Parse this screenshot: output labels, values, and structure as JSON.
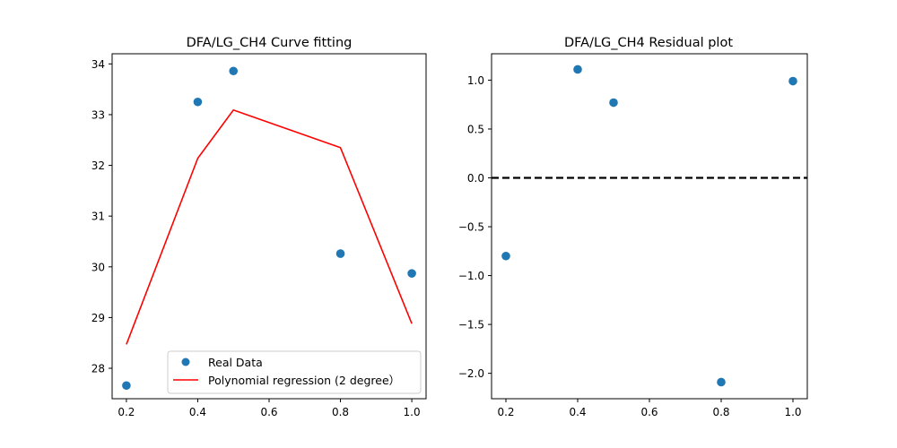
{
  "chart_data": [
    {
      "type": "scatter+line",
      "title": "DFA/LG_CH4 Curve fitting",
      "xlabel": "",
      "ylabel": "",
      "xlim": [
        0.16,
        1.04
      ],
      "ylim": [
        27.4,
        34.2
      ],
      "xticks": [
        "0.2",
        "0.4",
        "0.6",
        "0.8",
        "1.0"
      ],
      "yticks": [
        "28",
        "29",
        "30",
        "31",
        "32",
        "33",
        "34"
      ],
      "legend_position": "lower-right",
      "series": [
        {
          "name": "Real Data",
          "kind": "scatter",
          "color": "#1f77b4",
          "x": [
            0.2,
            0.4,
            0.5,
            0.8,
            1.0
          ],
          "y": [
            27.66,
            33.25,
            33.86,
            30.26,
            29.87
          ]
        },
        {
          "name": "Polynomial regression (2 degree）",
          "kind": "line",
          "color": "#ff0000",
          "x": [
            0.2,
            0.4,
            0.5,
            0.8,
            1.0
          ],
          "y": [
            28.47,
            32.14,
            33.09,
            32.35,
            28.88
          ]
        }
      ]
    },
    {
      "type": "scatter",
      "title": "DFA/LG_CH4 Residual plot",
      "xlabel": "",
      "ylabel": "",
      "xlim": [
        0.16,
        1.04
      ],
      "ylim": [
        -2.26,
        1.27
      ],
      "xticks": [
        "0.2",
        "0.4",
        "0.6",
        "0.8",
        "1.0"
      ],
      "yticks": [
        "1.0",
        "0.5",
        "0.0",
        "−0.5",
        "−1.0",
        "−1.5",
        "−2.0"
      ],
      "reference_line": {
        "y": 0,
        "style": "dashed",
        "color": "#000000"
      },
      "series": [
        {
          "name": "",
          "kind": "scatter",
          "color": "#1f77b4",
          "x": [
            0.2,
            0.4,
            0.5,
            0.8,
            1.0
          ],
          "y": [
            -0.8,
            1.11,
            0.77,
            -2.09,
            0.99
          ]
        }
      ]
    }
  ]
}
